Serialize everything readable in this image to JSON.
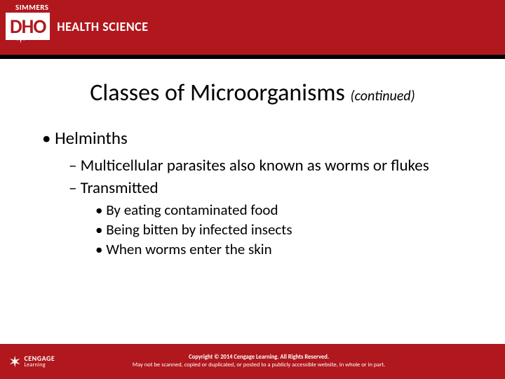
{
  "header": {
    "simmers": "SIMMERS",
    "dho": "DHO",
    "subject": "HEALTH SCIENCE"
  },
  "title": {
    "main": "Classes of Microorganisms ",
    "cont": "(continued)"
  },
  "bullets": {
    "main": "Helminths",
    "sub1": "Multicellular parasites also known as worms or flukes",
    "sub2": "Transmitted",
    "sub2a": "By eating contaminated food",
    "sub2b": "Being bitten by infected insects",
    "sub2c": "When worms enter the skin"
  },
  "footer": {
    "brand1": "CENGAGE",
    "brand2": "Learning",
    "copy1": "Copyright © 2014 Cengage Learning. All Rights Reserved.",
    "copy2": "May not be scanned, copied or duplicated, or posted to a publicly accessible website, in whole or in part."
  }
}
